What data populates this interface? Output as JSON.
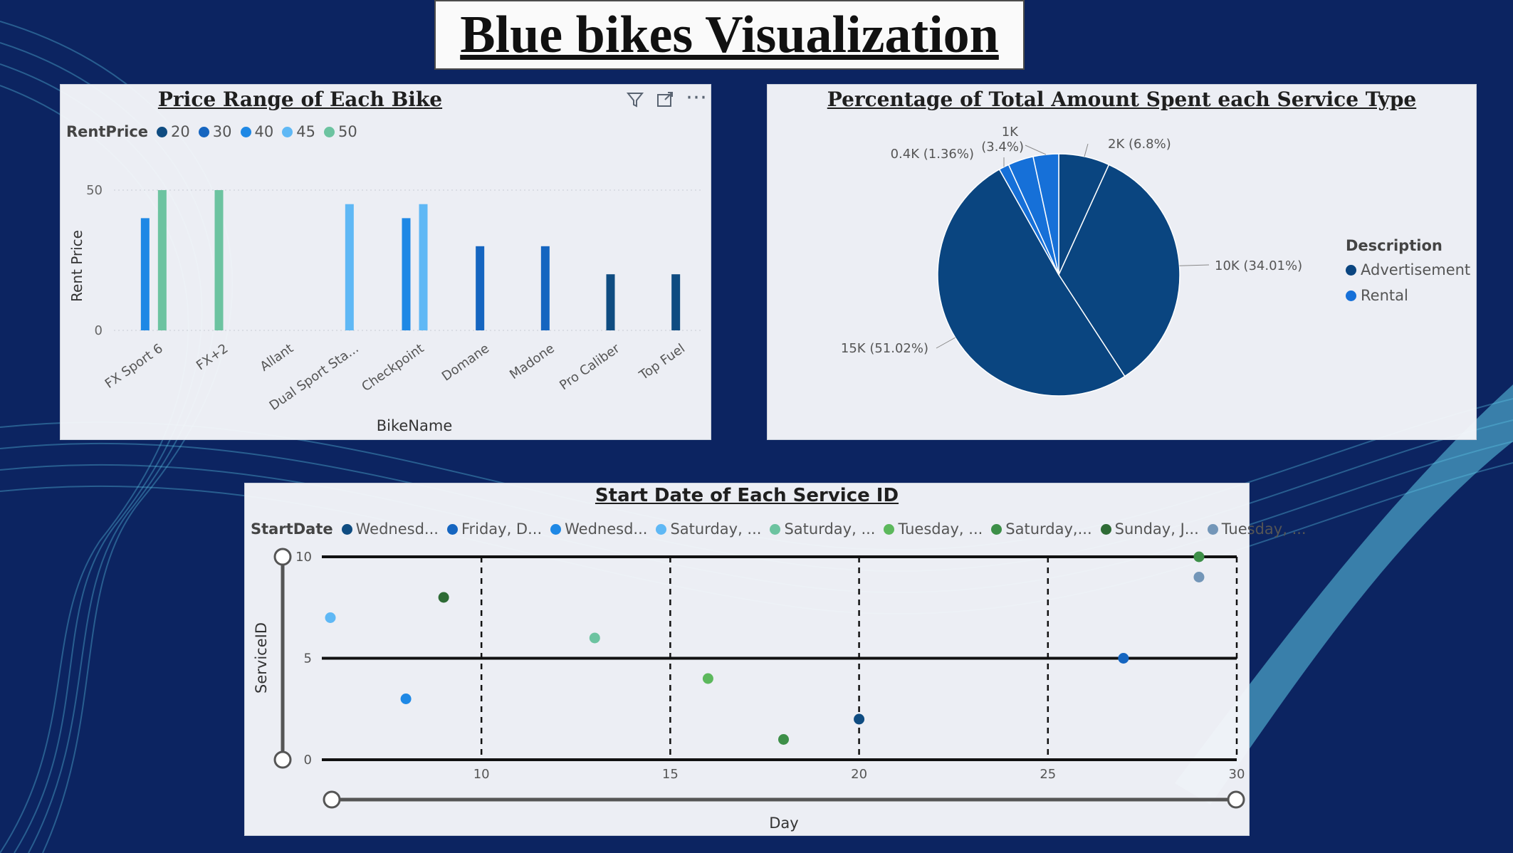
{
  "page": {
    "title": "Blue bikes Visualization"
  },
  "bar_panel": {
    "title": "Price Range of Each Bike",
    "legend_title": "RentPrice",
    "y_ticks": [
      "0",
      "50"
    ],
    "x_ticks": [
      "FX Sport 6",
      "FX+2",
      "Allant",
      "Dual Sport Sta...",
      "Checkpoint",
      "Domane",
      "Madone",
      "Pro Caliber",
      "Top Fuel"
    ],
    "toolbar": {
      "filter_icon": "filter-icon",
      "focus_icon": "focus-mode-icon",
      "more_icon": "more-options-icon"
    }
  },
  "pie_panel": {
    "title": "Percentage of Total Amount Spent each Service Type",
    "legend_title": "Description",
    "labels": [
      "15K (51.02%)",
      "10K (34.01%)",
      "2K (6.8%)",
      "1K",
      "(3.4%)",
      "0.4K (1.36%)"
    ]
  },
  "scatter_panel": {
    "title": "Start Date of Each Service ID",
    "legend_title": "StartDate",
    "x_ticks": [
      "10",
      "15",
      "20",
      "25",
      "30"
    ],
    "y_ticks": [
      "0",
      "5",
      "10"
    ]
  },
  "chart_data": [
    {
      "type": "bar",
      "title": "Price Range of Each Bike",
      "xlabel": "BikeName",
      "ylabel": "Rent Price",
      "ylim": [
        0,
        50
      ],
      "legend_title": "RentPrice",
      "categories": [
        "FX Sport 6",
        "FX+2",
        "Allant",
        "Dual Sport Sta...",
        "Checkpoint",
        "Domane",
        "Madone",
        "Pro Caliber",
        "Top Fuel"
      ],
      "series": [
        {
          "name": "20",
          "color": "#0f4c81",
          "values": [
            null,
            null,
            null,
            null,
            null,
            null,
            null,
            20,
            20
          ]
        },
        {
          "name": "30",
          "color": "#1565c0",
          "values": [
            null,
            null,
            null,
            null,
            null,
            30,
            30,
            null,
            null
          ]
        },
        {
          "name": "40",
          "color": "#1e88e5",
          "values": [
            40,
            null,
            null,
            null,
            40,
            null,
            null,
            null,
            null
          ]
        },
        {
          "name": "45",
          "color": "#5fb8f5",
          "values": [
            null,
            null,
            null,
            45,
            45,
            null,
            null,
            null,
            null
          ]
        },
        {
          "name": "50",
          "color": "#6cc3a0",
          "values": [
            50,
            50,
            null,
            null,
            null,
            null,
            null,
            null,
            null
          ]
        }
      ],
      "legend_position": "top-left",
      "grid": true
    },
    {
      "type": "pie",
      "title": "Percentage of Total Amount Spent each Service Type",
      "legend_title": "Description",
      "legend": [
        {
          "name": "Advertisement",
          "color": "#0a4580"
        },
        {
          "name": "Rental",
          "color": "#1670d8"
        }
      ],
      "slices": [
        {
          "value": 2,
          "percent": 6.8,
          "color": "#0a4580"
        },
        {
          "value": 10,
          "percent": 34.01,
          "color": "#0a4580"
        },
        {
          "value": 15,
          "percent": 51.02,
          "color": "#0a4580"
        },
        {
          "value": 0.4,
          "percent": 1.36,
          "color": "#1670d8"
        },
        {
          "value": 1,
          "percent": 3.4,
          "color": "#1670d8"
        },
        {
          "value": 1,
          "percent": 3.4,
          "color": "#1670d8"
        }
      ],
      "legend_position": "right"
    },
    {
      "type": "scatter",
      "title": "Start Date of Each Service ID",
      "xlabel": "Day",
      "ylabel": "ServiceID",
      "xlim": [
        6,
        30
      ],
      "ylim": [
        0,
        10
      ],
      "legend_title": "StartDate",
      "series": [
        {
          "name": "Wednesd...",
          "color": "#0f4c81",
          "points": [
            [
              20,
              2
            ]
          ]
        },
        {
          "name": "Friday, D...",
          "color": "#1565c0",
          "points": [
            [
              27,
              5
            ]
          ]
        },
        {
          "name": "Wednesd...",
          "color": "#1e88e5",
          "points": [
            [
              8,
              3
            ]
          ]
        },
        {
          "name": "Saturday, ...",
          "color": "#5fb8f5",
          "points": [
            [
              6,
              7
            ]
          ]
        },
        {
          "name": "Saturday, ...",
          "color": "#6cc3a0",
          "points": [
            [
              13,
              6
            ]
          ]
        },
        {
          "name": "Tuesday, ...",
          "color": "#5cb85c",
          "points": [
            [
              16,
              4
            ]
          ]
        },
        {
          "name": "Saturday,...",
          "color": "#3d8f48",
          "points": [
            [
              18,
              1
            ],
            [
              29,
              10
            ]
          ]
        },
        {
          "name": "Sunday, J...",
          "color": "#2e6b35",
          "points": [
            [
              9,
              8
            ]
          ]
        },
        {
          "name": "Tuesday, ...",
          "color": "#7396b8",
          "points": [
            [
              29,
              9
            ]
          ]
        }
      ],
      "legend_position": "top-left",
      "grid": true
    }
  ]
}
